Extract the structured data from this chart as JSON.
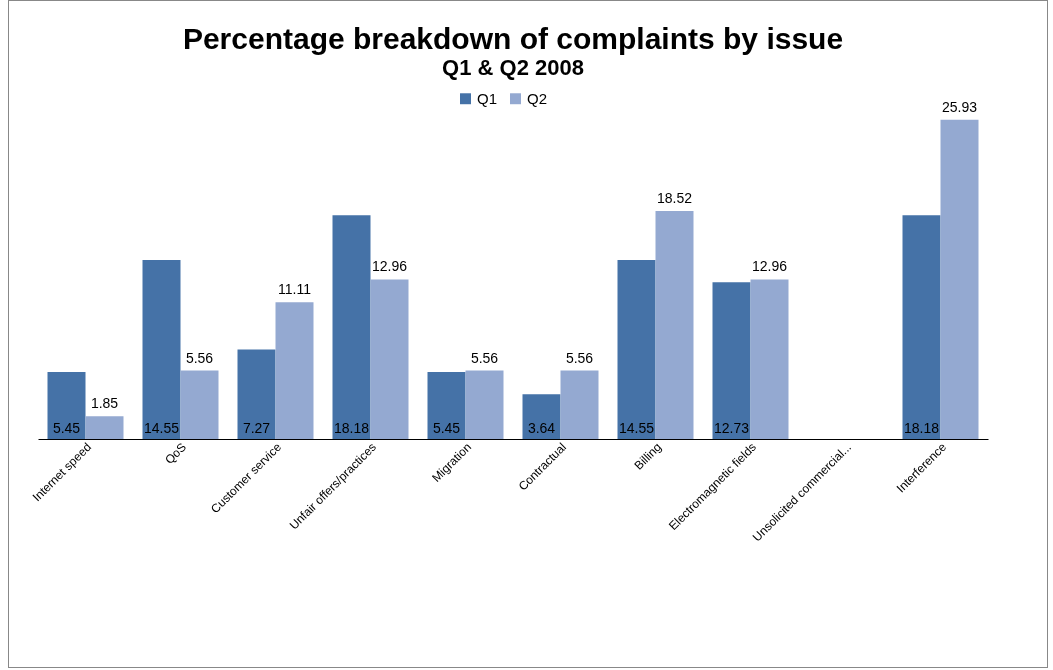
{
  "chart_data": {
    "type": "bar",
    "title": "Percentage breakdown of complaints by issue",
    "subtitle": "Q1 & Q2 2008",
    "categories": [
      "Internet speed",
      "QoS",
      "Customer service",
      "Unfair offers/practices",
      "Migration",
      "Contractual",
      "Billing",
      "Electromagnetic fields",
      "Unsolicited commercial...",
      "Interference"
    ],
    "series": [
      {
        "name": "Q1",
        "color": "#4572a7",
        "values": [
          5.45,
          14.55,
          7.27,
          18.18,
          5.45,
          3.64,
          14.55,
          12.73,
          null,
          18.18
        ]
      },
      {
        "name": "Q2",
        "color": "#94a9d1",
        "values": [
          1.85,
          5.56,
          11.11,
          12.96,
          5.56,
          5.56,
          18.52,
          12.96,
          null,
          25.93
        ]
      }
    ],
    "data_labels": true,
    "legend": "top",
    "grid": false
  }
}
